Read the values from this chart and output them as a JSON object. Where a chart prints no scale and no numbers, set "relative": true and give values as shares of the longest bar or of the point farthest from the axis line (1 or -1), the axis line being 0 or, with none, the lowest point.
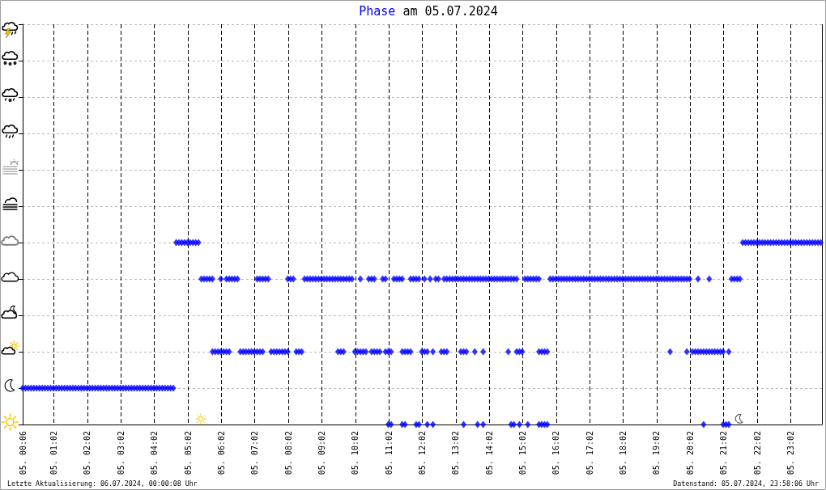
{
  "chart_data": {
    "type": "scatter",
    "title": "am 05.07.2024",
    "relative": true,
    "annotations": [
      "Letzte Aktualisierung: 06.07.2024, 00:00:08 Uhr",
      "Datenstand: 05.07.2024, 23:58:06 Uhr"
    ],
    "xlim": [
      "2024-07-05T00:06",
      "2024-07-05T23:58"
    ],
    "xticks": [
      {
        "value": "2024-07-05T00:06",
        "label": "05. 00:06"
      },
      {
        "value": "2024-07-05T01:02",
        "label": "05. 01:02"
      },
      {
        "value": "2024-07-05T02:02",
        "label": "05. 02:02"
      },
      {
        "value": "2024-07-05T03:02",
        "label": "05. 03:02"
      },
      {
        "value": "2024-07-05T04:02",
        "label": "05. 04:02"
      },
      {
        "value": "2024-07-05T05:02",
        "label": "05. 05:02"
      },
      {
        "value": "2024-07-05T06:02",
        "label": "05. 06:02"
      },
      {
        "value": "2024-07-05T07:02",
        "label": "05. 07:02"
      },
      {
        "value": "2024-07-05T08:02",
        "label": "05. 08:02"
      },
      {
        "value": "2024-07-05T09:02",
        "label": "05. 09:02"
      },
      {
        "value": "2024-07-05T10:02",
        "label": "05. 10:02"
      },
      {
        "value": "2024-07-05T11:02",
        "label": "05. 11:02"
      },
      {
        "value": "2024-07-05T12:02",
        "label": "05. 12:02"
      },
      {
        "value": "2024-07-05T13:02",
        "label": "05. 13:02"
      },
      {
        "value": "2024-07-05T14:02",
        "label": "05. 14:02"
      },
      {
        "value": "2024-07-05T15:02",
        "label": "05. 15:02"
      },
      {
        "value": "2024-07-05T16:02",
        "label": "05. 16:02"
      },
      {
        "value": "2024-07-05T17:02",
        "label": "05. 17:02"
      },
      {
        "value": "2024-07-05T18:02",
        "label": "05. 18:02"
      },
      {
        "value": "2024-07-05T19:02",
        "label": "05. 19:02"
      },
      {
        "value": "2024-07-05T20:02",
        "label": "05. 20:02"
      },
      {
        "value": "2024-07-05T21:02",
        "label": "05. 21:02"
      },
      {
        "value": "2024-07-05T22:02",
        "label": "05. 22:02"
      },
      {
        "value": "2024-07-05T23:02",
        "label": "05. 23:02"
      }
    ],
    "grid": true,
    "marker": "diamond",
    "x": [
      "2024-07-05T00:06",
      "2024-07-05T00:11",
      "2024-07-05T00:16",
      "2024-07-05T00:21",
      "2024-07-05T00:26",
      "2024-07-05T00:31",
      "2024-07-05T00:36",
      "2024-07-05T00:41",
      "2024-07-05T00:46",
      "2024-07-05T00:51",
      "2024-07-05T00:56",
      "2024-07-05T01:01",
      "2024-07-05T01:06",
      "2024-07-05T01:11",
      "2024-07-05T01:16",
      "2024-07-05T01:21",
      "2024-07-05T01:26",
      "2024-07-05T01:31",
      "2024-07-05T01:36",
      "2024-07-05T01:41",
      "2024-07-05T01:46",
      "2024-07-05T01:51",
      "2024-07-05T01:56",
      "2024-07-05T02:01",
      "2024-07-05T02:06",
      "2024-07-05T02:11",
      "2024-07-05T02:16",
      "2024-07-05T02:21",
      "2024-07-05T02:26",
      "2024-07-05T02:31",
      "2024-07-05T02:36",
      "2024-07-05T02:41",
      "2024-07-05T02:46",
      "2024-07-05T02:51",
      "2024-07-05T02:56",
      "2024-07-05T03:01",
      "2024-07-05T03:06",
      "2024-07-05T03:11",
      "2024-07-05T03:16",
      "2024-07-05T03:21",
      "2024-07-05T03:26",
      "2024-07-05T03:31",
      "2024-07-05T03:36",
      "2024-07-05T03:41",
      "2024-07-05T03:46",
      "2024-07-05T03:51",
      "2024-07-05T03:56",
      "2024-07-05T04:01",
      "2024-07-05T04:06",
      "2024-07-05T04:11",
      "2024-07-05T04:16",
      "2024-07-05T04:21",
      "2024-07-05T04:26",
      "2024-07-05T04:31",
      "2024-07-05T04:36",
      "2024-07-05T04:41",
      "2024-07-05T04:46",
      "2024-07-05T04:51",
      "2024-07-05T04:56",
      "2024-07-05T05:01",
      "2024-07-05T05:06",
      "2024-07-05T05:11",
      "2024-07-05T05:16",
      "2024-07-05T05:21",
      "2024-07-05T21:36",
      "2024-07-05T21:41",
      "2024-07-05T21:46",
      "2024-07-05T21:51",
      "2024-07-05T21:56",
      "2024-07-05T22:01",
      "2024-07-05T22:06",
      "2024-07-05T22:11",
      "2024-07-05T22:16",
      "2024-07-05T22:21",
      "2024-07-05T22:26",
      "2024-07-05T22:31",
      "2024-07-05T22:36",
      "2024-07-05T22:41",
      "2024-07-05T22:46",
      "2024-07-05T22:51",
      "2024-07-05T22:56",
      "2024-07-05T23:01",
      "2024-07-05T23:06",
      "2024-07-05T23:11",
      "2024-07-05T23:16",
      "2024-07-05T23:21",
      "2024-07-05T23:26",
      "2024-07-05T23:31",
      "2024-07-05T23:36",
      "2024-07-05T23:41",
      "2024-07-05T23:46",
      "2024-07-05T23:51",
      "2024-07-05T23:56",
      "2024-07-05T05:26",
      "2024-07-05T05:31",
      "2024-07-05T05:36",
      "2024-07-05T05:41",
      "2024-07-05T05:46",
      "2024-07-05T06:01",
      "2024-07-05T06:11",
      "2024-07-05T06:16",
      "2024-07-05T06:21",
      "2024-07-05T06:26",
      "2024-07-05T06:31",
      "2024-07-05T07:06",
      "2024-07-05T07:11",
      "2024-07-05T07:16",
      "2024-07-05T07:21",
      "2024-07-05T07:26",
      "2024-07-05T08:01",
      "2024-07-05T08:06",
      "2024-07-05T08:11",
      "2024-07-05T08:31",
      "2024-07-05T08:36",
      "2024-07-05T08:41",
      "2024-07-05T08:46",
      "2024-07-05T08:51",
      "2024-07-05T08:56",
      "2024-07-05T09:01",
      "2024-07-05T09:06",
      "2024-07-05T09:11",
      "2024-07-05T09:16",
      "2024-07-05T09:21",
      "2024-07-05T09:26",
      "2024-07-05T09:31",
      "2024-07-05T09:36",
      "2024-07-05T09:41",
      "2024-07-05T09:46",
      "2024-07-05T09:51",
      "2024-07-05T09:56",
      "2024-07-05T10:11",
      "2024-07-05T10:26",
      "2024-07-05T10:31",
      "2024-07-05T10:36",
      "2024-07-05T10:51",
      "2024-07-05T10:56",
      "2024-07-05T11:11",
      "2024-07-05T11:16",
      "2024-07-05T11:21",
      "2024-07-05T11:26",
      "2024-07-05T11:41",
      "2024-07-05T11:46",
      "2024-07-05T11:51",
      "2024-07-05T11:56",
      "2024-07-05T12:06",
      "2024-07-05T12:16",
      "2024-07-05T12:26",
      "2024-07-05T12:31",
      "2024-07-05T12:41",
      "2024-07-05T12:46",
      "2024-07-05T12:51",
      "2024-07-05T12:56",
      "2024-07-05T13:01",
      "2024-07-05T13:06",
      "2024-07-05T13:11",
      "2024-07-05T13:16",
      "2024-07-05T13:21",
      "2024-07-05T13:26",
      "2024-07-05T13:31",
      "2024-07-05T13:36",
      "2024-07-05T13:41",
      "2024-07-05T13:46",
      "2024-07-05T13:51",
      "2024-07-05T13:56",
      "2024-07-05T14:01",
      "2024-07-05T14:06",
      "2024-07-05T14:11",
      "2024-07-05T14:16",
      "2024-07-05T14:21",
      "2024-07-05T14:26",
      "2024-07-05T14:31",
      "2024-07-05T14:36",
      "2024-07-05T14:41",
      "2024-07-05T14:46",
      "2024-07-05T14:51",
      "2024-07-05T15:06",
      "2024-07-05T15:11",
      "2024-07-05T15:16",
      "2024-07-05T15:21",
      "2024-07-05T15:26",
      "2024-07-05T15:31",
      "2024-07-05T15:51",
      "2024-07-05T15:56",
      "2024-07-05T16:01",
      "2024-07-05T16:06",
      "2024-07-05T16:11",
      "2024-07-05T16:16",
      "2024-07-05T16:21",
      "2024-07-05T16:26",
      "2024-07-05T16:31",
      "2024-07-05T16:36",
      "2024-07-05T16:41",
      "2024-07-05T16:46",
      "2024-07-05T16:51",
      "2024-07-05T16:56",
      "2024-07-05T17:01",
      "2024-07-05T17:06",
      "2024-07-05T17:11",
      "2024-07-05T17:16",
      "2024-07-05T17:21",
      "2024-07-05T17:26",
      "2024-07-05T17:31",
      "2024-07-05T17:36",
      "2024-07-05T17:41",
      "2024-07-05T17:46",
      "2024-07-05T17:51",
      "2024-07-05T17:56",
      "2024-07-05T18:01",
      "2024-07-05T18:06",
      "2024-07-05T18:11",
      "2024-07-05T18:16",
      "2024-07-05T18:21",
      "2024-07-05T18:26",
      "2024-07-05T18:31",
      "2024-07-05T18:36",
      "2024-07-05T18:41",
      "2024-07-05T18:46",
      "2024-07-05T18:51",
      "2024-07-05T18:56",
      "2024-07-05T19:01",
      "2024-07-05T19:06",
      "2024-07-05T19:11",
      "2024-07-05T19:16",
      "2024-07-05T19:21",
      "2024-07-05T19:26",
      "2024-07-05T19:31",
      "2024-07-05T19:36",
      "2024-07-05T19:41",
      "2024-07-05T19:46",
      "2024-07-05T19:51",
      "2024-07-05T19:56",
      "2024-07-05T20:01",
      "2024-07-05T20:16",
      "2024-07-05T20:36",
      "2024-07-05T21:16",
      "2024-07-05T21:21",
      "2024-07-05T21:26",
      "2024-07-05T21:31",
      "2024-07-05T05:46",
      "2024-07-05T05:51",
      "2024-07-05T05:56",
      "2024-07-05T06:01",
      "2024-07-05T06:06",
      "2024-07-05T06:11",
      "2024-07-05T06:16",
      "2024-07-05T06:36",
      "2024-07-05T06:41",
      "2024-07-05T06:46",
      "2024-07-05T06:51",
      "2024-07-05T06:56",
      "2024-07-05T07:01",
      "2024-07-05T07:06",
      "2024-07-05T07:11",
      "2024-07-05T07:16",
      "2024-07-05T07:31",
      "2024-07-05T07:36",
      "2024-07-05T07:41",
      "2024-07-05T07:46",
      "2024-07-05T07:51",
      "2024-07-05T07:56",
      "2024-07-05T08:01",
      "2024-07-05T08:16",
      "2024-07-05T08:21",
      "2024-07-05T08:26",
      "2024-07-05T09:31",
      "2024-07-05T09:36",
      "2024-07-05T09:41",
      "2024-07-05T10:01",
      "2024-07-05T10:06",
      "2024-07-05T10:11",
      "2024-07-05T10:16",
      "2024-07-05T10:21",
      "2024-07-05T10:31",
      "2024-07-05T10:36",
      "2024-07-05T10:41",
      "2024-07-05T10:46",
      "2024-07-05T10:56",
      "2024-07-05T11:01",
      "2024-07-05T11:06",
      "2024-07-05T11:26",
      "2024-07-05T11:31",
      "2024-07-05T11:36",
      "2024-07-05T11:41",
      "2024-07-05T12:01",
      "2024-07-05T12:06",
      "2024-07-05T12:11",
      "2024-07-05T12:21",
      "2024-07-05T12:36",
      "2024-07-05T12:41",
      "2024-07-05T12:46",
      "2024-07-05T13:11",
      "2024-07-05T13:16",
      "2024-07-05T13:21",
      "2024-07-05T13:36",
      "2024-07-05T13:51",
      "2024-07-05T14:36",
      "2024-07-05T14:51",
      "2024-07-05T14:56",
      "2024-07-05T15:01",
      "2024-07-05T15:31",
      "2024-07-05T15:36",
      "2024-07-05T15:41",
      "2024-07-05T15:46",
      "2024-07-05T19:26",
      "2024-07-05T19:56",
      "2024-07-05T20:06",
      "2024-07-05T20:11",
      "2024-07-05T20:16",
      "2024-07-05T20:21",
      "2024-07-05T20:26",
      "2024-07-05T20:31",
      "2024-07-05T20:36",
      "2024-07-05T20:41",
      "2024-07-05T20:46",
      "2024-07-05T20:51",
      "2024-07-05T20:56",
      "2024-07-05T21:01",
      "2024-07-05T21:11",
      "2024-07-05T11:01",
      "2024-07-05T11:06",
      "2024-07-05T11:26",
      "2024-07-05T11:31",
      "2024-07-05T11:51",
      "2024-07-05T11:56",
      "2024-07-05T12:11",
      "2024-07-05T12:21",
      "2024-07-05T13:16",
      "2024-07-05T13:41",
      "2024-07-05T13:51",
      "2024-07-05T14:41",
      "2024-07-05T14:46",
      "2024-07-05T14:56",
      "2024-07-05T15:11",
      "2024-07-05T15:31",
      "2024-07-05T15:36",
      "2024-07-05T15:41",
      "2024-07-05T15:46",
      "2024-07-05T20:26",
      "2024-07-05T21:01",
      "2024-07-05T21:06",
      "2024-07-05T21:11"
    ],
    "series": [
      {
        "name": "Phase",
        "color": "#0000ff",
        "values": [
          0.2,
          0.2,
          0.2,
          0.2,
          0.2,
          0.2,
          0.2,
          0.2,
          0.2,
          0.2,
          0.2,
          0.2,
          0.2,
          0.2,
          0.2,
          0.2,
          0.2,
          0.2,
          0.2,
          0.2,
          0.2,
          0.2,
          0.2,
          0.2,
          0.2,
          0.2,
          0.2,
          0.2,
          0.2,
          0.2,
          0.2,
          0.2,
          0.2,
          0.2,
          0.2,
          0.2,
          0.2,
          0.2,
          0.2,
          0.2,
          0.2,
          0.2,
          0.2,
          0.2,
          0.2,
          0.2,
          0.2,
          0.2,
          0.2,
          0.2,
          0.2,
          0.2,
          0.2,
          0.2,
          0.2,
          1,
          1,
          1,
          1,
          1,
          1,
          1,
          1,
          1,
          1,
          1,
          1,
          1,
          1,
          1,
          1,
          1,
          1,
          1,
          1,
          1,
          1,
          1,
          1,
          1,
          1,
          1,
          1,
          1,
          1,
          1,
          1,
          1,
          1,
          1,
          1,
          1,
          1,
          0.8,
          0.8,
          0.8,
          0.8,
          0.8,
          0.8,
          0.8,
          0.8,
          0.8,
          0.8,
          0.8,
          0.8,
          0.8,
          0.8,
          0.8,
          0.8,
          0.8,
          0.8,
          0.8,
          0.8,
          0.8,
          0.8,
          0.8,
          0.8,
          0.8,
          0.8,
          0.8,
          0.8,
          0.8,
          0.8,
          0.8,
          0.8,
          0.8,
          0.8,
          0.8,
          0.8,
          0.8,
          0.8,
          0.8,
          0.8,
          0.8,
          0.8,
          0.8,
          0.8,
          0.8,
          0.8,
          0.8,
          0.8,
          0.8,
          0.8,
          0.8,
          0.8,
          0.8,
          0.8,
          0.8,
          0.8,
          0.8,
          0.8,
          0.8,
          0.8,
          0.8,
          0.8,
          0.8,
          0.8,
          0.8,
          0.8,
          0.8,
          0.8,
          0.8,
          0.8,
          0.8,
          0.8,
          0.8,
          0.8,
          0.8,
          0.8,
          0.8,
          0.8,
          0.8,
          0.8,
          0.8,
          0.8,
          0.8,
          0.8,
          0.8,
          0.8,
          0.8,
          0.8,
          0.8,
          0.8,
          0.8,
          0.8,
          0.8,
          0.8,
          0.8,
          0.8,
          0.8,
          0.8,
          0.8,
          0.8,
          0.8,
          0.8,
          0.8,
          0.8,
          0.8,
          0.8,
          0.8,
          0.8,
          0.8,
          0.8,
          0.8,
          0.8,
          0.8,
          0.8,
          0.8,
          0.8,
          0.8,
          0.8,
          0.8,
          0.8,
          0.8,
          0.8,
          0.8,
          0.8,
          0.8,
          0.8,
          0.8,
          0.8,
          0.8,
          0.8,
          0.8,
          0.8,
          0.8,
          0.8,
          0.8,
          0.8,
          0.8,
          0.8,
          0.8,
          0.8,
          0.8,
          0.8,
          0.8,
          0.8,
          0.8,
          0.4,
          0.4,
          0.4,
          0.4,
          0.4,
          0.4,
          0.4,
          0.4,
          0.4,
          0.4,
          0.4,
          0.4,
          0.4,
          0.4,
          0.4,
          0.4,
          0.4,
          0.4,
          0.4,
          0.4,
          0.4,
          0.4,
          0.4,
          0.4,
          0.4,
          0.4,
          0.4,
          0.4,
          0.4,
          0.4,
          0.4,
          0.4,
          0.4,
          0.4,
          0.4,
          0.4,
          0.4,
          0.4,
          0.4,
          0.4,
          0.4,
          0.4,
          0.4,
          0.4,
          0.4,
          0.4,
          0.4,
          0.4,
          0.4,
          0.4,
          0.4,
          0.4,
          0.4,
          0.4,
          0.4,
          0.4,
          0.4,
          0.4,
          0.4,
          0.4,
          0.4,
          0.4,
          0.4,
          0.4,
          0.4,
          0.4,
          0.4,
          0.4,
          0.4,
          0.4,
          0.4,
          0.4,
          0.4,
          0.4,
          0.4,
          0.4,
          0.4,
          0.4,
          0.4,
          0.4,
          0,
          0,
          0,
          0,
          0,
          0,
          0,
          0,
          0,
          0,
          0,
          0,
          0,
          0,
          0,
          0,
          0,
          0,
          0,
          0,
          0,
          0,
          0
        ]
      }
    ]
  }
}
